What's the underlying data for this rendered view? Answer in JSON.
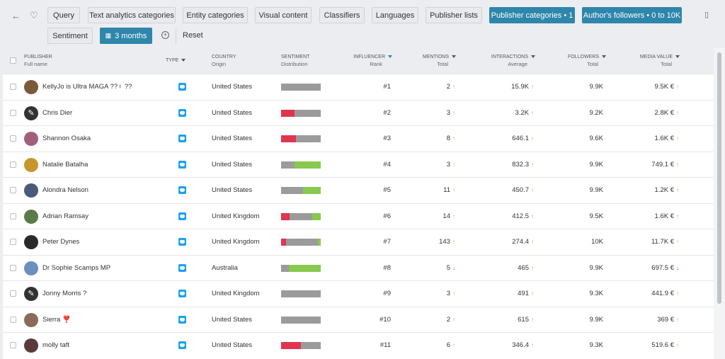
{
  "toolbar": {
    "filters": [
      "Query",
      "Text analytics categories",
      "Entity categories",
      "Visual content",
      "Classifiers",
      "Languages",
      "Publisher lists"
    ],
    "active_filters": [
      "Publisher categories • 1",
      "Author's followers • 0 to 10K"
    ],
    "sentiment_label": "Sentiment",
    "date_range": "3 months",
    "reset_label": "Reset"
  },
  "columns": {
    "publisher": "PUBLISHER",
    "publisher_sub": "Full name",
    "type": "TYPE",
    "country": "COUNTRY",
    "country_sub": "Origin",
    "sentiment": "SENTIMENT",
    "sentiment_sub": "Distribution",
    "influencer": "INFLUENCER",
    "influencer_sub": "Rank",
    "mentions": "MENTIONS",
    "mentions_sub": "Total",
    "interactions": "INTERACTIONS",
    "interactions_sub": "Average",
    "followers": "FOLLOWERS",
    "followers_sub": "Total",
    "media_value": "MEDIA VALUE",
    "media_value_sub": "Total"
  },
  "colors": {
    "accent": "#2e86ab",
    "negative": "#e0344f",
    "neutral": "#9b9b9b",
    "positive": "#88c94e",
    "twitter": "#1da1f2"
  },
  "rows": [
    {
      "name": "KellyJo is Ultra MAGA ??♀ ??",
      "avatar": "photo",
      "avatar_color": "#7a5a3a",
      "type": "twitter-icon",
      "country": "United States",
      "sentiment": [
        0,
        100,
        0
      ],
      "rank": "#1",
      "mentions": "2",
      "mentions_trend": "up",
      "interactions": "15.9K",
      "interactions_trend": "up",
      "followers": "9.9K",
      "media_value": "9.5K €",
      "media_trend": "up"
    },
    {
      "name": "Chris Dier",
      "avatar": "feather",
      "avatar_color": "#333333",
      "type": "twitter-icon",
      "country": "United States",
      "sentiment": [
        34,
        66,
        0
      ],
      "rank": "#2",
      "mentions": "3",
      "mentions_trend": "up",
      "interactions": "3.2K",
      "interactions_trend": "up",
      "followers": "9.2K",
      "media_value": "2.8K €",
      "media_trend": "up"
    },
    {
      "name": "Shannon Osaka",
      "avatar": "photo",
      "avatar_color": "#a0607a",
      "type": "twitter-icon",
      "country": "United States",
      "sentiment": [
        38,
        62,
        0
      ],
      "rank": "#3",
      "mentions": "8",
      "mentions_trend": "up",
      "interactions": "646.1",
      "interactions_trend": "up",
      "followers": "9.6K",
      "media_value": "1.6K €",
      "media_trend": "up"
    },
    {
      "name": "Natalie Batalha",
      "avatar": "photo",
      "avatar_color": "#c7962d",
      "type": "twitter-icon",
      "country": "United States",
      "sentiment": [
        0,
        34,
        66
      ],
      "rank": "#4",
      "mentions": "3",
      "mentions_trend": "up",
      "interactions": "832.3",
      "interactions_trend": "up",
      "followers": "9.9K",
      "media_value": "749.1 €",
      "media_trend": "up"
    },
    {
      "name": "Alondra Nelson",
      "avatar": "photo",
      "avatar_color": "#4a5a7a",
      "type": "twitter-icon",
      "country": "United States",
      "sentiment": [
        0,
        56,
        44
      ],
      "rank": "#5",
      "mentions": "11",
      "mentions_trend": "up",
      "interactions": "450.7",
      "interactions_trend": "up",
      "followers": "9.9K",
      "media_value": "1.2K €",
      "media_trend": "up"
    },
    {
      "name": "Adrian Ramsay",
      "avatar": "photo",
      "avatar_color": "#5a7a4a",
      "type": "twitter-icon",
      "country": "United Kingdom",
      "sentiment": [
        22,
        57,
        21
      ],
      "rank": "#6",
      "mentions": "14",
      "mentions_trend": "up",
      "interactions": "412.5",
      "interactions_trend": "up",
      "followers": "9.5K",
      "media_value": "1.6K €",
      "media_trend": "up"
    },
    {
      "name": "Peter Dynes",
      "avatar": "photo",
      "avatar_color": "#2a2a2a",
      "type": "twitter-icon",
      "country": "United Kingdom",
      "sentiment": [
        13,
        80,
        7
      ],
      "rank": "#7",
      "mentions": "143",
      "mentions_trend": "up",
      "interactions": "274.4",
      "interactions_trend": "up",
      "followers": "10K",
      "media_value": "11.7K €",
      "media_trend": "up"
    },
    {
      "name": "Dr Sophie Scamps MP",
      "avatar": "photo",
      "avatar_color": "#6a90c0",
      "type": "twitter-icon",
      "country": "Australia",
      "sentiment": [
        0,
        20,
        80
      ],
      "rank": "#8",
      "mentions": "5",
      "mentions_trend": "down",
      "interactions": "465",
      "interactions_trend": "up",
      "followers": "9.9K",
      "media_value": "697.5 €",
      "media_trend": "down"
    },
    {
      "name": "Jonny Morris ?",
      "avatar": "feather",
      "avatar_color": "#333333",
      "type": "twitter-icon",
      "country": "United Kingdom",
      "sentiment": [
        0,
        100,
        0
      ],
      "rank": "#9",
      "mentions": "3",
      "mentions_trend": "up",
      "interactions": "491",
      "interactions_trend": "up",
      "followers": "9.3K",
      "media_value": "441.9 €",
      "media_trend": "up"
    },
    {
      "name": "Sierra ❣️",
      "avatar": "photo",
      "avatar_color": "#8a6a5a",
      "type": "twitter-icon",
      "country": "United States",
      "sentiment": [
        0,
        100,
        0
      ],
      "rank": "#10",
      "mentions": "2",
      "mentions_trend": "up",
      "interactions": "615",
      "interactions_trend": "up",
      "followers": "9.9K",
      "media_value": "369 €",
      "media_trend": "up"
    },
    {
      "name": "molly taft",
      "avatar": "photo",
      "avatar_color": "#5a3a3a",
      "type": "twitter-icon",
      "country": "United States",
      "sentiment": [
        50,
        50,
        0
      ],
      "rank": "#11",
      "mentions": "6",
      "mentions_trend": "flat",
      "interactions": "346.4",
      "interactions_trend": "up",
      "followers": "9.3K",
      "media_value": "519.6 €",
      "media_trend": "up"
    }
  ]
}
